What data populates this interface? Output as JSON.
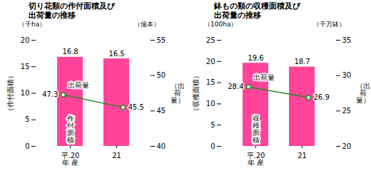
{
  "chart_data": [
    {
      "type": "bar",
      "title": "切り花類の作付面積及び\n出荷量の推移",
      "categories": [
        "平.20\n年 産",
        "21"
      ],
      "ylabel": "（作付面積）",
      "yunits": "（千ha）",
      "y2label": "（出\n荷\n量）",
      "y2units": "（億本）",
      "ylim": [
        0,
        20
      ],
      "yticks": [
        0,
        5,
        10,
        15,
        20
      ],
      "y2lim": [
        40,
        55
      ],
      "y2ticks": [
        40,
        45,
        50,
        55
      ],
      "grid": false,
      "series": [
        {
          "name": "作\n付\n面\n積",
          "type": "bar",
          "color": "#FF4499",
          "values": [
            16.8,
            16.5
          ],
          "data_labels": true
        },
        {
          "name": "出荷量",
          "type": "line",
          "axis": "y2",
          "color": "#228B22",
          "marker": "circle",
          "values": [
            47.3,
            45.5
          ],
          "data_labels": true
        }
      ]
    },
    {
      "type": "bar",
      "title": "鉢もの類の収穫面積及び\n出荷量の推移",
      "categories": [
        "平.20\n年 産",
        "21"
      ],
      "ylabel": "（収穫面積）",
      "yunits": "（100ha）",
      "y2label": "（出\n荷\n量）",
      "y2units": "（千万鉢）",
      "ylim": [
        0,
        25
      ],
      "yticks": [
        0,
        5,
        10,
        15,
        20,
        25
      ],
      "y2lim": [
        20,
        35
      ],
      "y2ticks": [
        20,
        25,
        30,
        35
      ],
      "grid": false,
      "series": [
        {
          "name": "収\n穫\n面\n積",
          "type": "bar",
          "color": "#FF4499",
          "values": [
            19.6,
            18.7
          ],
          "data_labels": true
        },
        {
          "name": "出荷量",
          "type": "line",
          "axis": "y2",
          "color": "#228B22",
          "marker": "circle",
          "values": [
            28.4,
            26.9
          ],
          "data_labels": true
        }
      ]
    }
  ]
}
